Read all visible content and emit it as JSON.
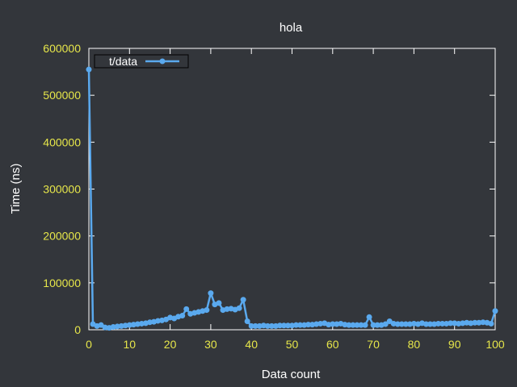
{
  "chart_data": {
    "type": "line",
    "title": "hola",
    "xlabel": "Data count",
    "ylabel": "Time (ns)",
    "xlim": [
      0,
      100
    ],
    "ylim": [
      0,
      600000
    ],
    "xticks": [
      "0",
      "10",
      "20",
      "30",
      "40",
      "50",
      "60",
      "70",
      "80",
      "90",
      "100"
    ],
    "yticks": [
      "0",
      "100000",
      "200000",
      "300000",
      "400000",
      "500000",
      "600000"
    ],
    "grid": false,
    "legend_position": "top-left",
    "colors": {
      "background": "#33363b",
      "axis": "#ffffff",
      "tick_label": "#e6e64a",
      "series": "#5aa9ee"
    },
    "series": [
      {
        "name": "t/data",
        "x": [
          0,
          1,
          2,
          3,
          4,
          5,
          6,
          7,
          8,
          9,
          10,
          11,
          12,
          13,
          14,
          15,
          16,
          17,
          18,
          19,
          20,
          21,
          22,
          23,
          24,
          25,
          26,
          27,
          28,
          29,
          30,
          31,
          32,
          33,
          34,
          35,
          36,
          37,
          38,
          39,
          40,
          41,
          42,
          43,
          44,
          45,
          46,
          47,
          48,
          49,
          50,
          51,
          52,
          53,
          54,
          55,
          56,
          57,
          58,
          59,
          60,
          61,
          62,
          63,
          64,
          65,
          66,
          67,
          68,
          69,
          70,
          71,
          72,
          73,
          74,
          75,
          76,
          77,
          78,
          79,
          80,
          81,
          82,
          83,
          84,
          85,
          86,
          87,
          88,
          89,
          90,
          91,
          92,
          93,
          94,
          95,
          96,
          97,
          98,
          99,
          100
        ],
        "y": [
          555000,
          12000,
          8000,
          10000,
          5000,
          4000,
          6000,
          7000,
          8000,
          9000,
          10000,
          11000,
          12000,
          13000,
          14000,
          16000,
          17000,
          19000,
          20000,
          22000,
          26000,
          24000,
          28000,
          30000,
          44000,
          34000,
          36000,
          38000,
          40000,
          42000,
          78000,
          54000,
          57000,
          42000,
          44000,
          45000,
          43000,
          46000,
          64000,
          18000,
          8000,
          8000,
          8000,
          9000,
          8000,
          8000,
          8000,
          9000,
          9000,
          9000,
          9000,
          10000,
          10000,
          10000,
          11000,
          11000,
          12000,
          13000,
          14000,
          11000,
          12000,
          12000,
          13000,
          11000,
          10000,
          10000,
          10000,
          10000,
          10000,
          27000,
          10000,
          10000,
          10000,
          12000,
          18000,
          13000,
          12000,
          12000,
          12000,
          12000,
          13000,
          12000,
          14000,
          12000,
          12000,
          12000,
          13000,
          13000,
          13000,
          14000,
          14000,
          13000,
          14000,
          15000,
          14000,
          15000,
          15000,
          16000,
          15000,
          13000,
          40000
        ]
      }
    ]
  }
}
